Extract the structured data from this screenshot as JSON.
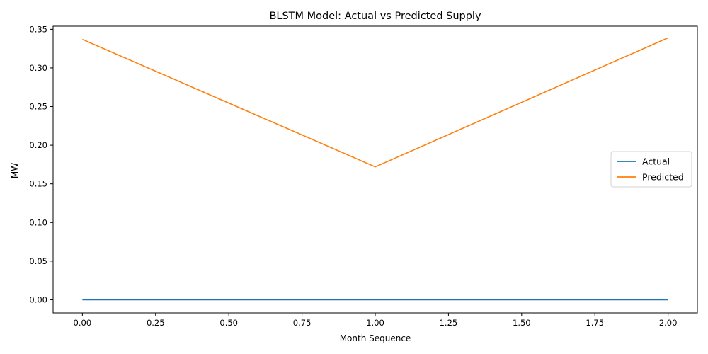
{
  "chart_data": {
    "type": "line",
    "title": "BLSTM Model: Actual vs Predicted Supply",
    "xlabel": "Month Sequence",
    "ylabel": "MW",
    "xlim": [
      -0.1,
      2.1
    ],
    "ylim": [
      -0.017,
      0.354
    ],
    "xticks": [
      0.0,
      0.25,
      0.5,
      0.75,
      1.0,
      1.25,
      1.5,
      1.75,
      2.0
    ],
    "xtick_labels": [
      "0.00",
      "0.25",
      "0.50",
      "0.75",
      "1.00",
      "1.25",
      "1.50",
      "1.75",
      "2.00"
    ],
    "yticks": [
      0.0,
      0.05,
      0.1,
      0.15,
      0.2,
      0.25,
      0.3,
      0.35
    ],
    "ytick_labels": [
      "0.00",
      "0.05",
      "0.10",
      "0.15",
      "0.20",
      "0.25",
      "0.30",
      "0.35"
    ],
    "grid": false,
    "legend_position": "center-right",
    "x": [
      0,
      1,
      2
    ],
    "series": [
      {
        "name": "Actual",
        "values": [
          0.0,
          0.0,
          0.0
        ],
        "color": "#1f77b4"
      },
      {
        "name": "Predicted",
        "values": [
          0.337,
          0.172,
          0.339
        ],
        "color": "#ff7f0e"
      }
    ]
  }
}
